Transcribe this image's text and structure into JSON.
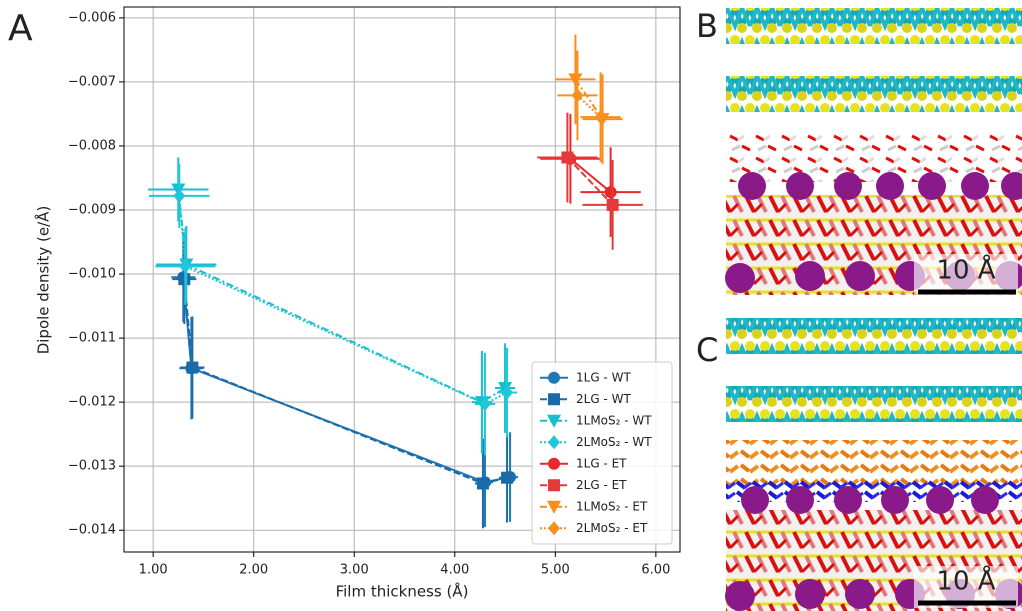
{
  "chart_data": {
    "type": "errorbar_scatter",
    "xlabel": "Film thickness (Å)",
    "ylabel": "Dipole density (e/Å)",
    "xlim": [
      0.71,
      6.24
    ],
    "ylim": [
      -0.01434,
      -0.00583
    ],
    "xticks": [
      {
        "value": 1,
        "label": "1.00"
      },
      {
        "value": 2,
        "label": "2.00"
      },
      {
        "value": 3,
        "label": "3.00"
      },
      {
        "value": 4,
        "label": "4.00"
      },
      {
        "value": 5,
        "label": "5.00"
      },
      {
        "value": 6,
        "label": "6.00"
      }
    ],
    "yticks": [
      {
        "value": -0.006,
        "label": "−0.006"
      },
      {
        "value": -0.007,
        "label": "−0.007"
      },
      {
        "value": -0.008,
        "label": "−0.008"
      },
      {
        "value": -0.009,
        "label": "−0.009"
      },
      {
        "value": -0.01,
        "label": "−0.010"
      },
      {
        "value": -0.011,
        "label": "−0.011"
      },
      {
        "value": -0.012,
        "label": "−0.012"
      },
      {
        "value": -0.013,
        "label": "−0.013"
      },
      {
        "value": -0.014,
        "label": "−0.014"
      }
    ],
    "grid": true,
    "legend": "lower right",
    "series": [
      {
        "name": "1LG - WT",
        "color": "#1f77b4",
        "marker": "circle",
        "linestyle": "solid",
        "x": [
          1.3,
          1.38,
          4.3,
          4.55
        ],
        "values": [
          -0.01005,
          -0.01147,
          -0.01325,
          -0.01317
        ],
        "xerr": [
          0.12,
          0.12,
          0.08,
          0.08
        ],
        "yerr": [
          0.0007,
          0.0008,
          0.0007,
          0.0007
        ]
      },
      {
        "name": "2LG - WT",
        "color": "#1a6aa8",
        "marker": "square",
        "linestyle": "dashed",
        "x": [
          1.31,
          1.39,
          4.28,
          4.52
        ],
        "values": [
          -0.01008,
          -0.01146,
          -0.01327,
          -0.01318
        ],
        "xerr": [
          0.12,
          0.12,
          0.08,
          0.08
        ],
        "yerr": [
          0.0007,
          0.0008,
          0.0007,
          0.0007
        ]
      },
      {
        "name": "1LMoS₂ - WT",
        "color": "#17becf",
        "marker": "triangle_down",
        "linestyle": "dashdot",
        "x": [
          1.25,
          1.33,
          4.27,
          4.5
        ],
        "values": [
          -0.00868,
          -0.00985,
          -0.012,
          -0.01178
        ],
        "xerr": [
          0.3,
          0.3,
          0.1,
          0.1
        ],
        "yerr": [
          0.0005,
          0.0006,
          0.0008,
          0.0007
        ]
      },
      {
        "name": "2LMoS₂ - WT",
        "color": "#1fc7d8",
        "marker": "diamond",
        "linestyle": "dotted",
        "x": [
          1.26,
          1.32,
          4.3,
          4.52
        ],
        "values": [
          -0.00878,
          -0.00988,
          -0.01203,
          -0.01185
        ],
        "xerr": [
          0.3,
          0.3,
          0.1,
          0.1
        ],
        "yerr": [
          0.0005,
          0.0006,
          0.0008,
          0.0007
        ]
      },
      {
        "name": "1LG - ET",
        "color": "#e8282b",
        "marker": "circle",
        "linestyle": "solid",
        "x": [
          5.15,
          5.55
        ],
        "values": [
          -0.0082,
          -0.00872
        ],
        "xerr": [
          0.3,
          0.3
        ],
        "yerr": [
          0.0007,
          0.0007
        ]
      },
      {
        "name": "2LG - ET",
        "color": "#e23a3a",
        "marker": "square",
        "linestyle": "dashed",
        "x": [
          5.12,
          5.57
        ],
        "values": [
          -0.00818,
          -0.00892
        ],
        "xerr": [
          0.3,
          0.3
        ],
        "yerr": [
          0.0007,
          0.0007
        ]
      },
      {
        "name": "1LMoS₂ - ET",
        "color": "#ff8c1a",
        "marker": "triangle_down",
        "linestyle": "dashdot",
        "x": [
          5.2,
          5.47
        ],
        "values": [
          -0.00696,
          -0.00758
        ],
        "xerr": [
          0.2,
          0.2
        ],
        "yerr": [
          0.0007,
          0.0007
        ]
      },
      {
        "name": "2LMoS₂ - ET",
        "color": "#f5901f",
        "marker": "diamond",
        "linestyle": "dotted",
        "x": [
          5.22,
          5.45
        ],
        "values": [
          -0.00721,
          -0.00755
        ],
        "xerr": [
          0.2,
          0.2
        ],
        "yerr": [
          0.0007,
          0.0007
        ]
      }
    ]
  },
  "panel_labels": [
    "A",
    "B",
    "C"
  ],
  "scale_bars": [
    "10 Å",
    "10 Å"
  ]
}
